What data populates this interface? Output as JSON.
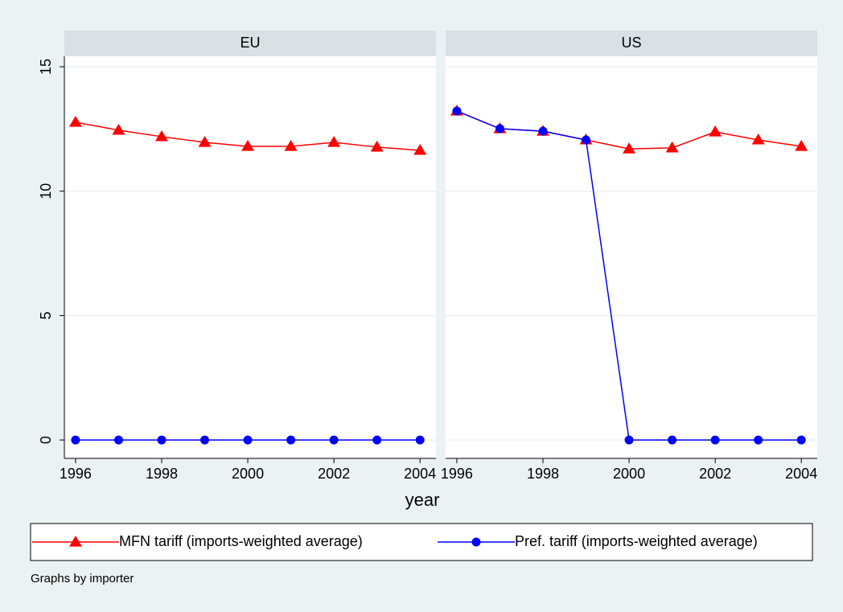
{
  "chart_data": [
    {
      "type": "line",
      "title": "EU",
      "x": [
        1996,
        1997,
        1998,
        1999,
        2000,
        2001,
        2002,
        2003,
        2004
      ],
      "xlim": [
        1995.74,
        2004.37
      ],
      "xticks": [
        1996,
        1998,
        2000,
        2002,
        2004
      ],
      "ylim": [
        -0.74,
        15.42
      ],
      "yticks": [
        0,
        5,
        10,
        15
      ],
      "grid": true,
      "series": [
        {
          "name": "MFN tariff (imports-weighted average)",
          "color": "#ff0000",
          "marker": "triangle",
          "values": [
            12.77,
            12.45,
            12.19,
            11.96,
            11.8,
            11.8,
            11.96,
            11.77,
            11.64
          ]
        },
        {
          "name": "Pref. tariff (imports-weighted average)",
          "color": "#0000ff",
          "marker": "circle",
          "values": [
            0,
            0,
            0,
            0,
            0,
            0,
            0,
            0,
            0
          ]
        }
      ]
    },
    {
      "type": "line",
      "title": "US",
      "x": [
        1996,
        1997,
        1998,
        1999,
        2000,
        2001,
        2002,
        2003,
        2004
      ],
      "xlim": [
        1995.74,
        2004.37
      ],
      "xticks": [
        1996,
        1998,
        2000,
        2002,
        2004
      ],
      "ylim": [
        -0.74,
        15.42
      ],
      "yticks": [
        0,
        5,
        10,
        15
      ],
      "grid": true,
      "series": [
        {
          "color": "#ff0000",
          "marker": "triangle",
          "values": [
            13.22,
            12.51,
            12.41,
            12.06,
            11.7,
            11.74,
            12.38,
            12.06,
            11.8
          ]
        },
        {
          "color": "#0000ff",
          "marker": "circle",
          "values": [
            13.22,
            12.51,
            12.41,
            12.06,
            0,
            0,
            0,
            0,
            0
          ]
        }
      ]
    }
  ],
  "xlabel": "year",
  "note": "Graphs by importer"
}
